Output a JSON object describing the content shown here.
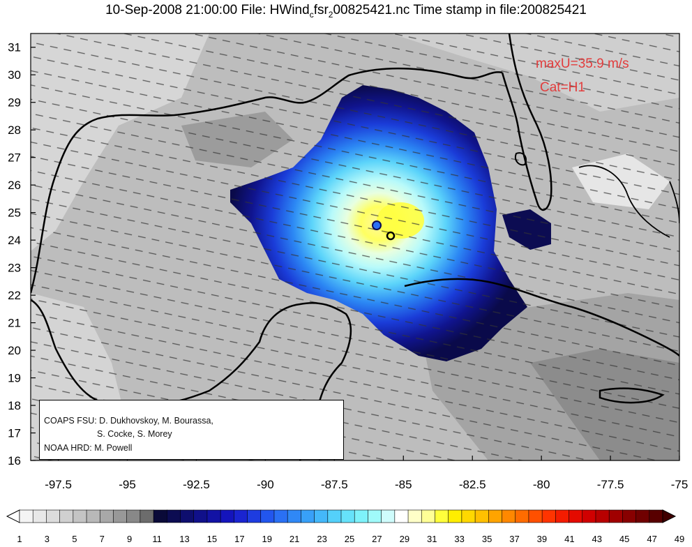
{
  "title": {
    "date": "10-Sep-2008 21:00:00",
    "file_prefix": "File: HWind",
    "sub1": "c",
    "mid": "fsr",
    "sub2": "2",
    "file_suffix": "00825421.nc",
    "stamp": "Time stamp in file:200825421"
  },
  "annotations": {
    "max_wind": "maxU=35.9 m/s",
    "category": "Cat=H1"
  },
  "credit": {
    "line1": "COAPS FSU: D. Dukhovskoy, M. Bourassa,",
    "line2": "S. Cocke, S. Morey",
    "line3": "NOAA HRD:  M. Powell"
  },
  "map": {
    "x_ticks": [
      "-97.5",
      "-95",
      "-92.5",
      "-90",
      "-87.5",
      "-85",
      "-82.5",
      "-80",
      "-77.5",
      "-75"
    ],
    "y_ticks": [
      "16",
      "17",
      "18",
      "19",
      "20",
      "21",
      "22",
      "23",
      "24",
      "25",
      "26",
      "27",
      "28",
      "29",
      "30",
      "31"
    ],
    "lon_range": [
      -98.5,
      -75
    ],
    "lat_range": [
      16,
      31.5
    ],
    "storm_center": [
      -85.3,
      24.1
    ]
  },
  "colorbar": {
    "labels": [
      "1",
      "3",
      "5",
      "7",
      "9",
      "11",
      "13",
      "15",
      "17",
      "19",
      "21",
      "23",
      "25",
      "27",
      "29",
      "31",
      "33",
      "35",
      "37",
      "39",
      "41",
      "43",
      "45",
      "47",
      "49"
    ],
    "colors": [
      "#f4f4f4",
      "#e8e8e8",
      "#dcdcdc",
      "#d0d0d0",
      "#c4c4c4",
      "#b8b8b8",
      "#a8a8a8",
      "#989898",
      "#888888",
      "#6c6c6c",
      "#0a0a38",
      "#0c0c52",
      "#0e0e6e",
      "#10108a",
      "#1212a4",
      "#1414bc",
      "#1a24d0",
      "#1e3ce0",
      "#2256ee",
      "#2a70f4",
      "#3088f6",
      "#38a0f8",
      "#44b8fa",
      "#54d0fa",
      "#66e2fa",
      "#7ef2fa",
      "#a0fafa",
      "#cffcfc",
      "#ffffff",
      "#ffffc8",
      "#ffff96",
      "#ffff3c",
      "#ffee00",
      "#ffd800",
      "#ffc000",
      "#ffa400",
      "#ff8800",
      "#ff6c00",
      "#ff5000",
      "#ff3400",
      "#f41c00",
      "#e40a00",
      "#d00000",
      "#b80000",
      "#a00000",
      "#880000",
      "#700000",
      "#580000"
    ]
  }
}
